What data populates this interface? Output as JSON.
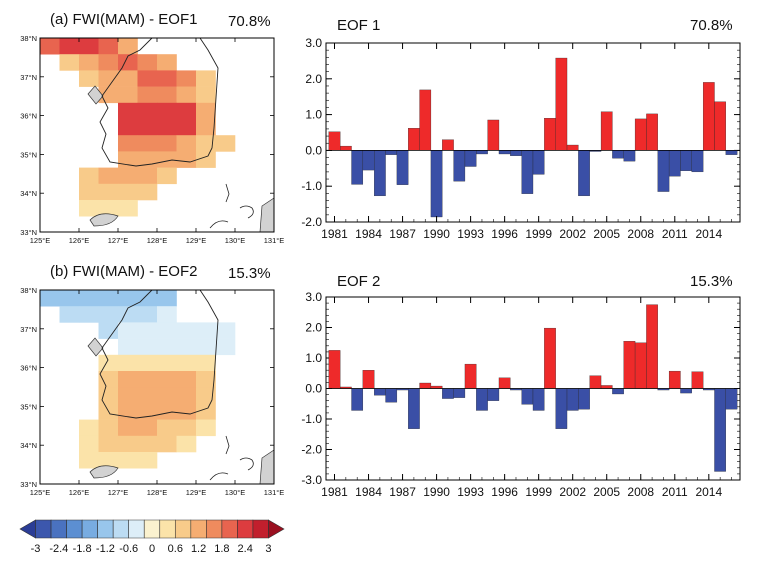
{
  "colors": {
    "positive": "#ee2a2a",
    "negative": "#3a4fa6",
    "scale": [
      "#2b3d96",
      "#3c57ad",
      "#4a72c0",
      "#5c8fd2",
      "#78ace1",
      "#98c6ec",
      "#bcdcf3",
      "#ddeef8",
      "#fbf2cf",
      "#fbe3a9",
      "#f8cb8a",
      "#f5ad72",
      "#ef8b5e",
      "#e8644f",
      "#dd3c3f",
      "#c21f2d",
      "#9a1020"
    ],
    "land": "#d2d2d2"
  },
  "maps": [
    {
      "title": "(a) FWI(MAM) - EOF1",
      "percent": "70.8%",
      "lat_labels": [
        "38°N",
        "37°N",
        "36°N",
        "35°N",
        "34°N",
        "33°N"
      ],
      "lon_labels": [
        "125°E",
        "126°E",
        "127°E",
        "128°E",
        "129°E",
        "130°E",
        "131°E"
      ],
      "grid_values": [
        [
          1.8,
          2.1,
          2.1,
          1.8,
          1.2,
          0,
          0,
          0,
          0,
          0,
          0,
          0
        ],
        [
          0,
          0.6,
          0.9,
          1.5,
          1.8,
          1.5,
          1.2,
          0,
          0,
          0,
          0,
          0
        ],
        [
          0,
          0,
          0.6,
          0.9,
          1.2,
          1.8,
          1.8,
          1.5,
          0.6,
          0,
          0,
          0
        ],
        [
          0,
          0,
          0,
          0.9,
          1.2,
          1.5,
          1.5,
          1.2,
          0.6,
          0,
          0,
          0
        ],
        [
          0,
          0,
          0,
          0,
          2.1,
          2.1,
          2.1,
          2.1,
          1.2,
          0,
          0,
          0
        ],
        [
          0,
          0,
          0,
          0,
          2.1,
          2.1,
          2.1,
          2.1,
          0.9,
          0,
          0,
          0
        ],
        [
          0,
          0,
          0,
          0,
          1.5,
          1.5,
          1.5,
          1.2,
          0.6,
          0.6,
          0,
          0
        ],
        [
          0,
          0,
          0,
          0,
          1.2,
          1.2,
          1.2,
          0.9,
          0.6,
          0,
          0,
          0
        ],
        [
          0,
          0,
          0.6,
          0.9,
          0.9,
          0.9,
          0.6,
          0,
          0,
          0,
          0,
          0
        ],
        [
          0,
          0,
          0.6,
          0.6,
          0.6,
          0.6,
          0,
          0,
          0,
          0,
          0,
          0
        ],
        [
          0,
          0,
          0.3,
          0.3,
          0.3,
          0,
          0,
          0,
          0,
          0,
          0,
          0
        ],
        [
          0,
          0,
          0,
          0,
          0,
          0,
          0,
          0,
          0,
          0,
          0,
          0
        ]
      ]
    },
    {
      "title": "(b) FWI(MAM) - EOF2",
      "percent": "15.3%",
      "lat_labels": [
        "38°N",
        "37°N",
        "36°N",
        "35°N",
        "34°N",
        "33°N"
      ],
      "lon_labels": [
        "125°E",
        "126°E",
        "127°E",
        "128°E",
        "129°E",
        "130°E",
        "131°E"
      ],
      "grid_values": [
        [
          -0.9,
          -0.9,
          -0.9,
          -0.9,
          -0.9,
          -0.9,
          -0.9,
          0,
          0,
          0,
          0,
          0
        ],
        [
          0,
          -0.6,
          -0.6,
          -0.6,
          -0.6,
          -0.6,
          -0.3,
          0,
          0,
          0,
          0,
          0
        ],
        [
          0,
          0,
          0,
          -0.6,
          -0.3,
          -0.3,
          -0.3,
          -0.3,
          -0.3,
          -0.3,
          0,
          0
        ],
        [
          0,
          0,
          0,
          0,
          -0.3,
          -0.1,
          -0.1,
          -0.1,
          -0.1,
          -0.1,
          0,
          0
        ],
        [
          0,
          0,
          0,
          0.3,
          0.3,
          0.3,
          0.3,
          0.3,
          0.3,
          0,
          0,
          0
        ],
        [
          0,
          0,
          0,
          0.6,
          0.9,
          0.9,
          0.9,
          0.9,
          0.6,
          0,
          0,
          0
        ],
        [
          0,
          0,
          0,
          0.6,
          0.9,
          0.9,
          0.9,
          0.9,
          0.6,
          0,
          0,
          0
        ],
        [
          0,
          0,
          0,
          0.6,
          0.9,
          0.9,
          0.9,
          0.9,
          0.6,
          0,
          0,
          0
        ],
        [
          0,
          0,
          0.3,
          0.6,
          0.9,
          0.9,
          0.6,
          0.6,
          0.3,
          0,
          0,
          0
        ],
        [
          0,
          0,
          0.3,
          0.6,
          0.6,
          0.6,
          0.6,
          0.3,
          0,
          0,
          0,
          0
        ],
        [
          0,
          0,
          0.3,
          0.3,
          0.3,
          0.3,
          0,
          0,
          0,
          0,
          0,
          0
        ],
        [
          0,
          0,
          0,
          0,
          0,
          0,
          0,
          0,
          0,
          0,
          0,
          0
        ]
      ]
    }
  ],
  "colorbar": {
    "labels": [
      "-3",
      "-2.4",
      "-1.8",
      "-1.2",
      "-0.6",
      "0",
      "0.6",
      "1.2",
      "1.8",
      "2.4",
      "3"
    ]
  },
  "chart_data": [
    {
      "type": "bar",
      "title": "EOF 1",
      "percent": "70.8%",
      "ylim": [
        -2.0,
        3.0
      ],
      "yticks": [
        "-2.0",
        "-1.0",
        "0.0",
        "1.0",
        "2.0",
        "3.0"
      ],
      "ytick_values": [
        -2,
        -1,
        0,
        1,
        2,
        3
      ],
      "x": [
        1981,
        1982,
        1983,
        1984,
        1985,
        1986,
        1987,
        1988,
        1989,
        1990,
        1991,
        1992,
        1993,
        1994,
        1995,
        1996,
        1997,
        1998,
        1999,
        2000,
        2001,
        2002,
        2003,
        2004,
        2005,
        2006,
        2007,
        2008,
        2009,
        2010,
        2011,
        2012,
        2013,
        2014,
        2015,
        2016
      ],
      "values": [
        0.52,
        0.12,
        -0.95,
        -0.55,
        -1.27,
        -0.12,
        -0.96,
        0.62,
        1.69,
        -1.86,
        0.3,
        -0.86,
        -0.45,
        -0.1,
        0.85,
        -0.1,
        -0.15,
        -1.21,
        -0.67,
        0.9,
        2.58,
        0.15,
        -1.27,
        -0.03,
        1.08,
        -0.22,
        -0.3,
        0.88,
        1.02,
        -1.15,
        -0.72,
        -0.57,
        -0.6,
        1.9,
        1.36,
        -0.12
      ],
      "xtick_labels": [
        "1981",
        "1984",
        "1987",
        "1990",
        "1993",
        "1996",
        "1999",
        "2002",
        "2005",
        "2008",
        "2011",
        "2014"
      ]
    },
    {
      "type": "bar",
      "title": "EOF 2",
      "percent": "15.3%",
      "ylim": [
        -3.0,
        3.0
      ],
      "yticks": [
        "-3.0",
        "-2.0",
        "-1.0",
        "0.0",
        "1.0",
        "2.0",
        "3.0"
      ],
      "ytick_values": [
        -3,
        -2,
        -1,
        0,
        1,
        2,
        3
      ],
      "x": [
        1981,
        1982,
        1983,
        1984,
        1985,
        1986,
        1987,
        1988,
        1989,
        1990,
        1991,
        1992,
        1993,
        1994,
        1995,
        1996,
        1997,
        1998,
        1999,
        2000,
        2001,
        2002,
        2003,
        2004,
        2005,
        2006,
        2007,
        2008,
        2009,
        2010,
        2011,
        2012,
        2013,
        2014,
        2015,
        2016
      ],
      "values": [
        1.25,
        0.05,
        -0.72,
        0.6,
        -0.22,
        -0.45,
        -0.05,
        -1.32,
        0.18,
        0.08,
        -0.33,
        -0.3,
        0.8,
        -0.72,
        -0.4,
        0.35,
        -0.05,
        -0.52,
        -0.72,
        1.98,
        -1.32,
        -0.72,
        -0.68,
        0.42,
        0.1,
        -0.18,
        1.55,
        1.5,
        2.75,
        -0.05,
        0.57,
        -0.15,
        0.55,
        -0.05,
        -2.72,
        -0.68
      ],
      "xtick_labels": [
        "1981",
        "1984",
        "1987",
        "1990",
        "1993",
        "1996",
        "1999",
        "2002",
        "2005",
        "2008",
        "2011",
        "2014"
      ]
    }
  ]
}
